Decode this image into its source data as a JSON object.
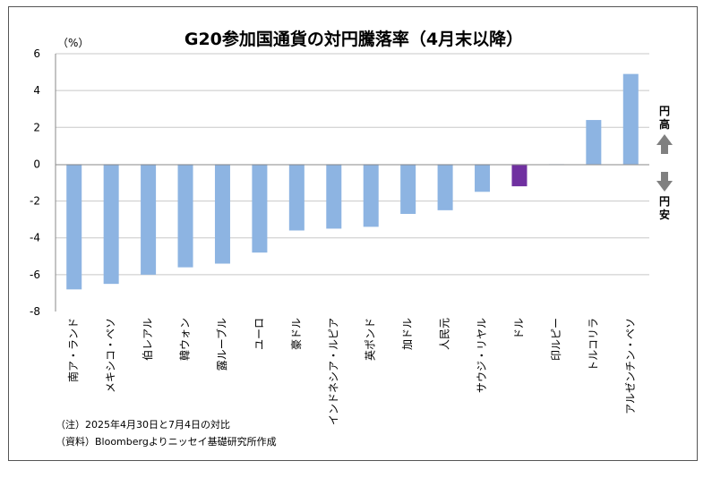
{
  "chart_data": {
    "type": "bar",
    "title": "G20参加国通貨の対円騰落率（4月末以降）",
    "unit_label": "（%）",
    "ylim": [
      -8,
      6
    ],
    "yticks": [
      6,
      4,
      2,
      0,
      -2,
      -4,
      -6,
      -8
    ],
    "grid": true,
    "categories": [
      "南ア・ランド",
      "メキシコ・ペソ",
      "伯レアル",
      "韓ウォン",
      "露ルーブル",
      "ユーロ",
      "豪ドル",
      "インドネシア・ルピア",
      "英ポンド",
      "加ドル",
      "人民元",
      "サウジ・リヤル",
      "ドル",
      "印ルピー",
      "トルコリラ",
      "アルゼンチン・ペソ"
    ],
    "values": [
      -6.8,
      -6.5,
      -6.0,
      -5.6,
      -5.4,
      -4.8,
      -3.6,
      -3.5,
      -3.4,
      -2.7,
      -2.5,
      -1.5,
      -1.2,
      0.0,
      2.4,
      4.9
    ],
    "colors": [
      "#8db4e2",
      "#8db4e2",
      "#8db4e2",
      "#8db4e2",
      "#8db4e2",
      "#8db4e2",
      "#8db4e2",
      "#8db4e2",
      "#8db4e2",
      "#8db4e2",
      "#8db4e2",
      "#8db4e2",
      "#7030a0",
      "#8db4e2",
      "#8db4e2",
      "#8db4e2"
    ],
    "side_labels": {
      "up": "円高",
      "down": "円安"
    },
    "notes": [
      "（注）2025年4月30日と7月4日の対比",
      "（資料）Bloombergよりニッセイ基礎研究所作成"
    ]
  }
}
